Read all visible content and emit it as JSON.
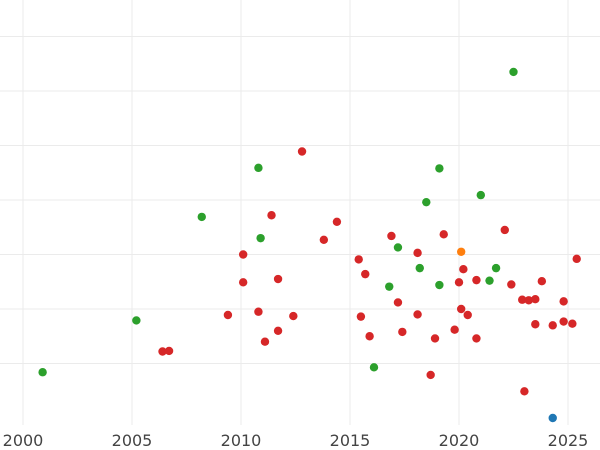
{
  "chart_data": {
    "type": "scatter",
    "title": "",
    "xlabel": "",
    "ylabel": "",
    "grid": true,
    "legend": "none",
    "xlim": [
      1999.0,
      2026.5
    ],
    "ylim": [
      -0.3,
      7.7
    ],
    "x_ticks": [
      2000,
      2005,
      2010,
      2015,
      2020,
      2025
    ],
    "x_tick_labels": [
      "2000",
      "2005",
      "2010",
      "2015",
      "2020",
      "2025"
    ],
    "y_gridlines": [
      1,
      2,
      3,
      4,
      5,
      6,
      7
    ],
    "colors": {
      "red": "#d62728",
      "green": "#2ca02c",
      "orange": "#ff7f0e",
      "blue": "#1f77b4"
    },
    "series": [
      {
        "color": "red",
        "points": [
          [
            2006.4,
            1.22
          ],
          [
            2006.7,
            1.23
          ],
          [
            2009.4,
            1.89
          ],
          [
            2010.1,
            2.49
          ],
          [
            2010.1,
            3.0
          ],
          [
            2010.8,
            1.95
          ],
          [
            2011.1,
            1.4
          ],
          [
            2011.4,
            3.72
          ],
          [
            2011.7,
            2.55
          ],
          [
            2011.7,
            1.6
          ],
          [
            2012.4,
            1.87
          ],
          [
            2012.8,
            4.89
          ],
          [
            2013.8,
            3.27
          ],
          [
            2014.4,
            3.6
          ],
          [
            2015.4,
            2.91
          ],
          [
            2015.5,
            1.86
          ],
          [
            2015.7,
            2.64
          ],
          [
            2015.9,
            1.5
          ],
          [
            2016.9,
            3.34
          ],
          [
            2017.2,
            2.12
          ],
          [
            2017.4,
            1.58
          ],
          [
            2018.1,
            3.03
          ],
          [
            2018.1,
            1.9
          ],
          [
            2018.7,
            0.79
          ],
          [
            2018.9,
            1.46
          ],
          [
            2019.3,
            3.37
          ],
          [
            2019.8,
            1.62
          ],
          [
            2020.0,
            2.49
          ],
          [
            2020.1,
            2.0
          ],
          [
            2020.2,
            2.73
          ],
          [
            2020.4,
            1.89
          ],
          [
            2020.8,
            2.53
          ],
          [
            2020.8,
            1.46
          ],
          [
            2022.1,
            3.45
          ],
          [
            2022.4,
            2.45
          ],
          [
            2022.9,
            2.17
          ],
          [
            2023.0,
            0.49
          ],
          [
            2023.2,
            2.16
          ],
          [
            2023.5,
            1.72
          ],
          [
            2023.5,
            2.18
          ],
          [
            2023.8,
            2.51
          ],
          [
            2024.3,
            1.7
          ],
          [
            2024.8,
            2.14
          ],
          [
            2024.8,
            1.77
          ],
          [
            2025.2,
            1.73
          ],
          [
            2025.4,
            2.92
          ]
        ]
      },
      {
        "color": "green",
        "points": [
          [
            2000.9,
            0.84
          ],
          [
            2005.2,
            1.79
          ],
          [
            2008.2,
            3.69
          ],
          [
            2010.8,
            4.59
          ],
          [
            2010.9,
            3.3
          ],
          [
            2016.1,
            0.93
          ],
          [
            2016.8,
            2.41
          ],
          [
            2017.2,
            3.13
          ],
          [
            2018.2,
            2.75
          ],
          [
            2018.5,
            3.96
          ],
          [
            2019.1,
            4.58
          ],
          [
            2019.1,
            2.44
          ],
          [
            2021.0,
            4.09
          ],
          [
            2021.4,
            2.52
          ],
          [
            2021.7,
            2.75
          ],
          [
            2022.5,
            6.35
          ]
        ]
      },
      {
        "color": "orange",
        "points": [
          [
            2020.1,
            3.05
          ]
        ]
      },
      {
        "color": "blue",
        "points": [
          [
            2024.3,
            0.0
          ]
        ]
      }
    ]
  }
}
